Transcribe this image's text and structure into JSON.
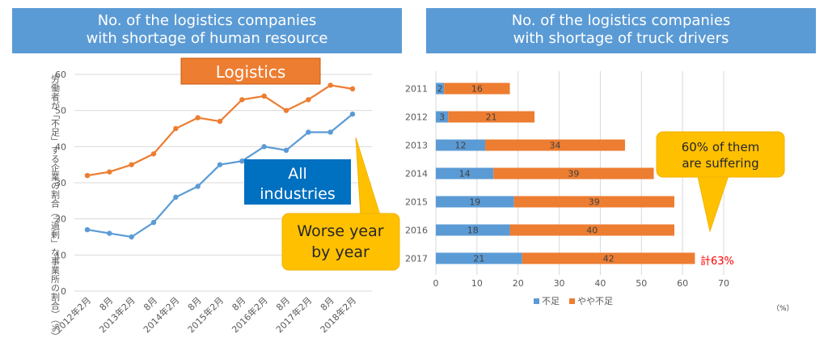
{
  "left_panel": {
    "title_line1": "No. of the logistics companies",
    "title_line2": "with shortage of human resource",
    "callout_logistics": "Logistics",
    "callout_all_line1": "All",
    "callout_all_line2": "industries",
    "callout_worse_line1": "Worse year",
    "callout_worse_line2": "by year"
  },
  "right_panel": {
    "title_line1": "No. of the logistics companies",
    "title_line2": "with shortage of truck drivers",
    "callout_line1": "60% of them",
    "callout_line2": "are suffering",
    "total_note": "計63%",
    "unit": "（%）"
  },
  "colors": {
    "title_bg": "#5b9bd5",
    "blue_series": "#5b9bd5",
    "orange_series": "#ed7d31",
    "callout_yellow": "#ffc000",
    "all_industries_box": "#0070c0",
    "total_note": "#ff0000"
  },
  "chart_data": [
    {
      "type": "line",
      "ylabel": "労働者が「不足」する企業の割合（「過剰」な事業所の割合）（%）",
      "ylim": [
        0,
        60
      ],
      "yticks": [
        0,
        10,
        20,
        30,
        40,
        50,
        60
      ],
      "categories": [
        "2012年2月",
        "8月",
        "2013年2月",
        "8月",
        "2014年2月",
        "8月",
        "2015年2月",
        "8月",
        "2016年2月",
        "8月",
        "2017年2月",
        "8月",
        "2018年2月"
      ],
      "grid": true,
      "series": [
        {
          "name": "Logistics",
          "color": "#ed7d31",
          "values": [
            32,
            33,
            35,
            38,
            45,
            48,
            47,
            53,
            54,
            50,
            53,
            57,
            56
          ]
        },
        {
          "name": "All industries",
          "color": "#5b9bd5",
          "values": [
            17,
            16,
            15,
            19,
            26,
            29,
            35,
            36,
            40,
            39,
            44,
            44,
            49
          ]
        }
      ]
    },
    {
      "type": "bar",
      "orientation": "horizontal",
      "stacked": true,
      "categories": [
        "2011",
        "2012",
        "2013",
        "2014",
        "2015",
        "2016",
        "2017"
      ],
      "xlim": [
        0,
        70
      ],
      "xticks": [
        0,
        10,
        20,
        30,
        40,
        50,
        60,
        70
      ],
      "legend": "bottom",
      "series": [
        {
          "name": "不足",
          "color": "#5b9bd5",
          "values": [
            2,
            3,
            12,
            14,
            19,
            18,
            21
          ]
        },
        {
          "name": "やや不足",
          "color": "#ed7d31",
          "values": [
            16,
            21,
            34,
            39,
            39,
            40,
            42
          ]
        }
      ]
    }
  ]
}
